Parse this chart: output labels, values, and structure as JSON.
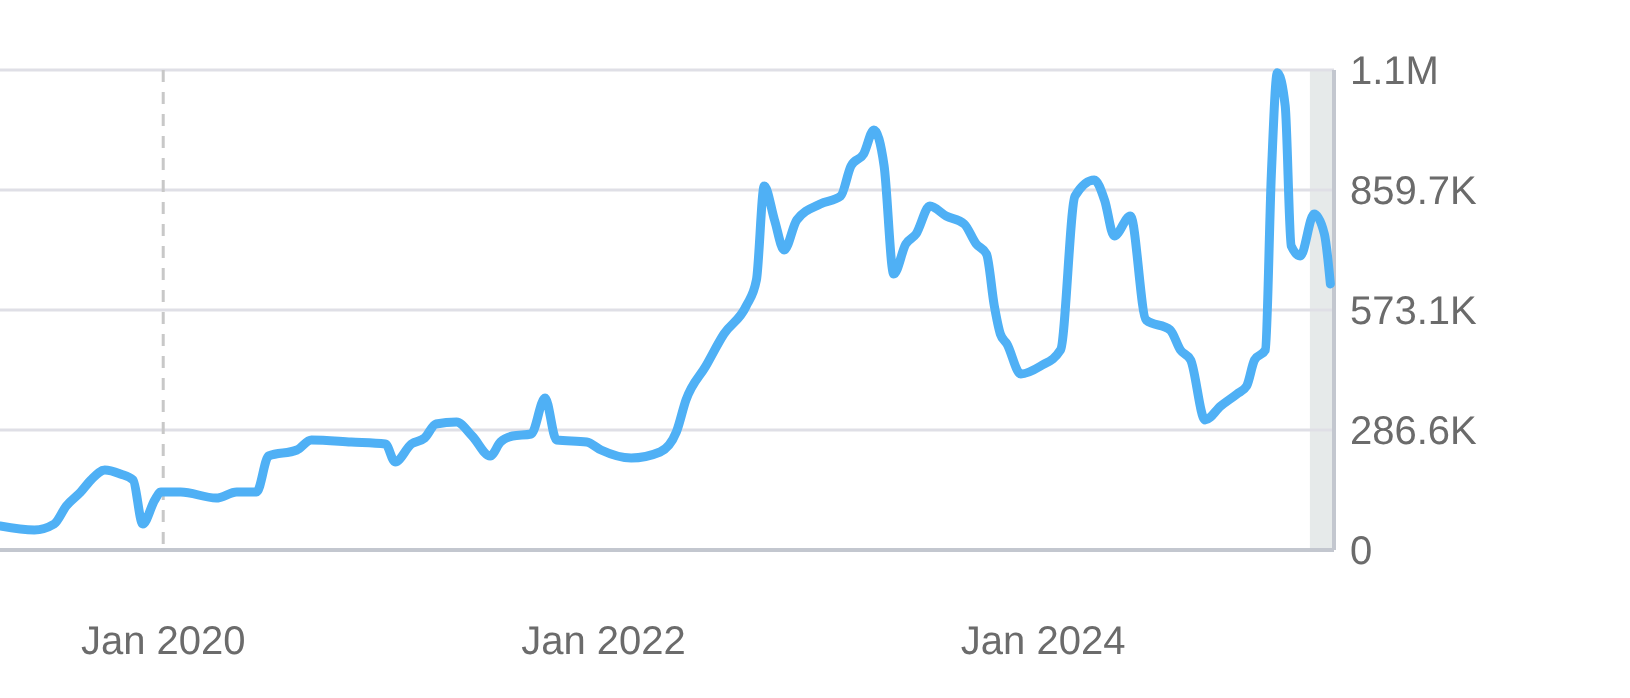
{
  "chart_data": {
    "type": "line",
    "x": [
      "2019-04-05",
      "2019-06-01",
      "2019-07-04",
      "2019-07-24",
      "2019-08-17",
      "2019-09-03",
      "2019-09-26",
      "2019-10-22",
      "2019-11-12",
      "2019-11-28",
      "2019-12-18",
      "2019-12-28",
      "2020-01-30",
      "2020-03-29",
      "2020-05-02",
      "2020-06-04",
      "2020-06-24",
      "2020-08-10",
      "2020-09-03",
      "2020-11-08",
      "2021-01-04",
      "2021-01-20",
      "2021-02-16",
      "2021-03-10",
      "2021-03-29",
      "2021-05-02",
      "2021-05-28",
      "2021-06-27",
      "2021-07-14",
      "2021-08-03",
      "2021-09-03",
      "2021-09-26",
      "2021-10-15",
      "2021-12-04",
      "2021-12-28",
      "2022-02-16",
      "2022-04-05",
      "2022-05-02",
      "2022-05-18",
      "2022-06-20",
      "2022-07-20",
      "2022-08-26",
      "2022-09-12",
      "2022-09-25",
      "2022-10-12",
      "2022-10-28",
      "2022-11-18",
      "2022-12-27",
      "2023-01-30",
      "2023-02-16",
      "2023-03-09",
      "2023-03-26",
      "2023-04-12",
      "2023-04-28",
      "2023-05-18",
      "2023-06-04",
      "2023-06-27",
      "2023-07-24",
      "2023-08-23",
      "2023-09-12",
      "2023-09-29",
      "2023-10-12",
      "2023-10-22",
      "2023-11-02",
      "2023-11-25",
      "2023-12-28",
      "2024-01-30",
      "2024-02-23",
      "2024-03-26",
      "2024-04-12",
      "2024-04-28",
      "2024-05-25",
      "2024-06-20",
      "2024-07-30",
      "2024-08-16",
      "2024-09-02",
      "2024-09-26",
      "2024-10-22",
      "2024-11-18",
      "2024-12-04",
      "2024-12-17",
      "2025-01-04",
      "2025-01-14",
      "2025-01-24",
      "2025-02-06",
      "2025-02-16",
      "2025-03-03",
      "2025-03-26",
      "2025-04-12",
      "2025-04-22"
    ],
    "series": [
      {
        "color": "#4fb0f5",
        "values": [
          57300,
          47800,
          62100,
          105100,
          138500,
          167200,
          191100,
          181500,
          167200,
          62100,
          119400,
          138500,
          138500,
          124200,
          138500,
          138500,
          224500,
          238800,
          262700,
          257900,
          253200,
          210200,
          253200,
          267500,
          300900,
          305700,
          272300,
          224500,
          257900,
          272300,
          277000,
          363000,
          262700,
          257900,
          238800,
          219700,
          234100,
          281800,
          358300,
          439400,
          515900,
          582700,
          644900,
          869400,
          788200,
          716500,
          788200,
          826400,
          845500,
          917100,
          945800,
          1003100,
          917100,
          659200,
          730800,
          754700,
          821600,
          797700,
          778600,
          730800,
          706900,
          582700,
          515900,
          492000,
          420300,
          439400,
          477700,
          845500,
          883700,
          835900,
          749900,
          797700,
          549300,
          525400,
          477700,
          453800,
          310500,
          343900,
          372600,
          391700,
          453800,
          477700,
          898000,
          1140000,
          1060400,
          726100,
          702200,
          802500,
          754700,
          635300
        ]
      }
    ],
    "xlim": [
      "2019-04-05",
      "2025-04-28"
    ],
    "xticks": [
      {
        "value": "2020-01-01",
        "label": "Jan 2020"
      },
      {
        "value": "2022-01-01",
        "label": "Jan 2022"
      },
      {
        "value": "2024-01-01",
        "label": "Jan 2024"
      }
    ],
    "ylim": [
      0,
      1146400
    ],
    "yticks": [
      {
        "value": 0,
        "label": "0"
      },
      {
        "value": 286600,
        "label": "286.6K"
      },
      {
        "value": 573100,
        "label": "573.1K"
      },
      {
        "value": 859700,
        "label": "859.7K"
      },
      {
        "value": 1146400,
        "label": "1.1M"
      }
    ],
    "grid": "y",
    "line_style": "solid",
    "marker": "none",
    "ref_lines": [
      {
        "axis": "x",
        "value": "2020-01-01",
        "color": "#c8c8c8",
        "line_style": "dashed"
      }
    ],
    "bands": [
      {
        "axis": "x",
        "from": "2025-03-19",
        "to": "2025-04-28",
        "color": "#e6eaea"
      }
    ]
  }
}
